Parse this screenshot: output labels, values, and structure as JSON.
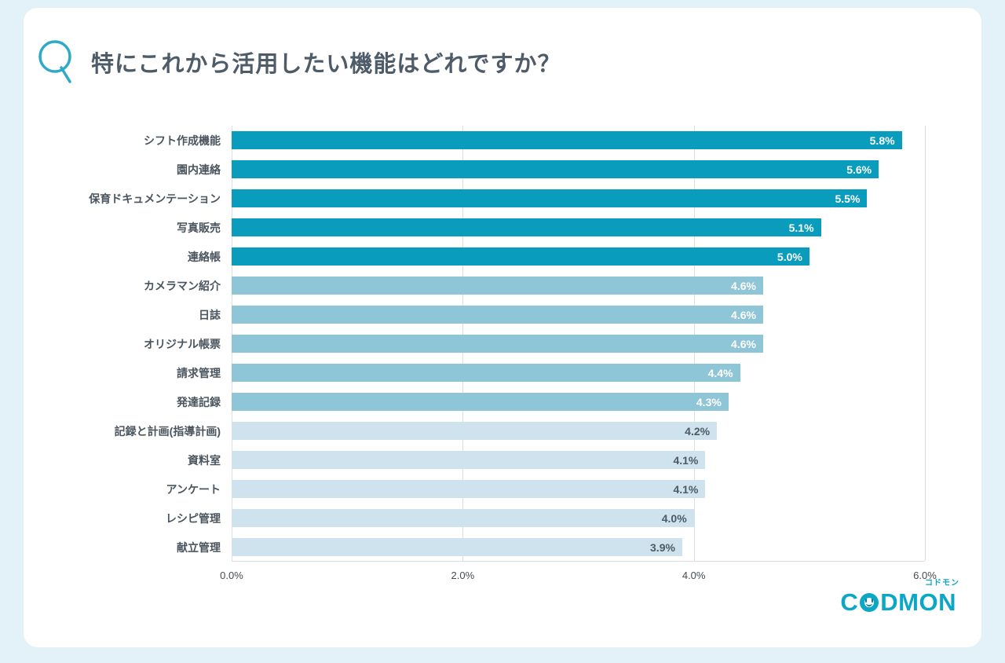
{
  "page": {
    "background_color": "#e3f1f8",
    "card_color": "#ffffff"
  },
  "header": {
    "q_mark": "Q",
    "q_color": "#2fa9c8",
    "title": "特にこれから活用したい機能はどれですか？",
    "title_color": "#4e5b68"
  },
  "chart_data": {
    "type": "bar",
    "orientation": "horizontal",
    "title": "特にこれから活用したい機能はどれですか？",
    "xlabel": "",
    "ylabel": "",
    "xlim": [
      0,
      6.0
    ],
    "x_ticks": [
      "0.0%",
      "2.0%",
      "4.0%",
      "6.0%"
    ],
    "grid": "vertical",
    "legend": "none",
    "categories": [
      "シフト作成機能",
      "園内連絡",
      "保育ドキュメンテーション",
      "写真販売",
      "連絡帳",
      "カメラマン紹介",
      "日誌",
      "オリジナル帳票",
      "請求管理",
      "発達記録",
      "記録と計画(指導計画)",
      "資料室",
      "アンケート",
      "レシピ管理",
      "献立管理"
    ],
    "values": [
      5.8,
      5.6,
      5.5,
      5.1,
      5.0,
      4.6,
      4.6,
      4.6,
      4.4,
      4.3,
      4.2,
      4.1,
      4.1,
      4.0,
      3.9
    ],
    "value_labels": [
      "5.8%",
      "5.6%",
      "5.5%",
      "5.1%",
      "5.0%",
      "4.6%",
      "4.6%",
      "4.6%",
      "4.4%",
      "4.3%",
      "4.2%",
      "4.1%",
      "4.1%",
      "4.0%",
      "3.9%"
    ],
    "groups": [
      0,
      0,
      0,
      0,
      0,
      1,
      1,
      1,
      1,
      1,
      2,
      2,
      2,
      2,
      2
    ],
    "palette": {
      "0": "#0a9cbd",
      "1": "#8fc6d7",
      "2": "#cee3ed"
    },
    "value_label_colors": {
      "0": "#ffffff",
      "1": "#ffffff",
      "2": "#4d5a64"
    },
    "category_label_color": "#4b555f",
    "gridline_color": "#dcdfe2"
  },
  "footer": {
    "logo_text_left": "C",
    "logo_text_right": "DMON",
    "logo_full": "CODMON",
    "logo_kana": "コドモン",
    "logo_color": "#0ca7c6"
  }
}
